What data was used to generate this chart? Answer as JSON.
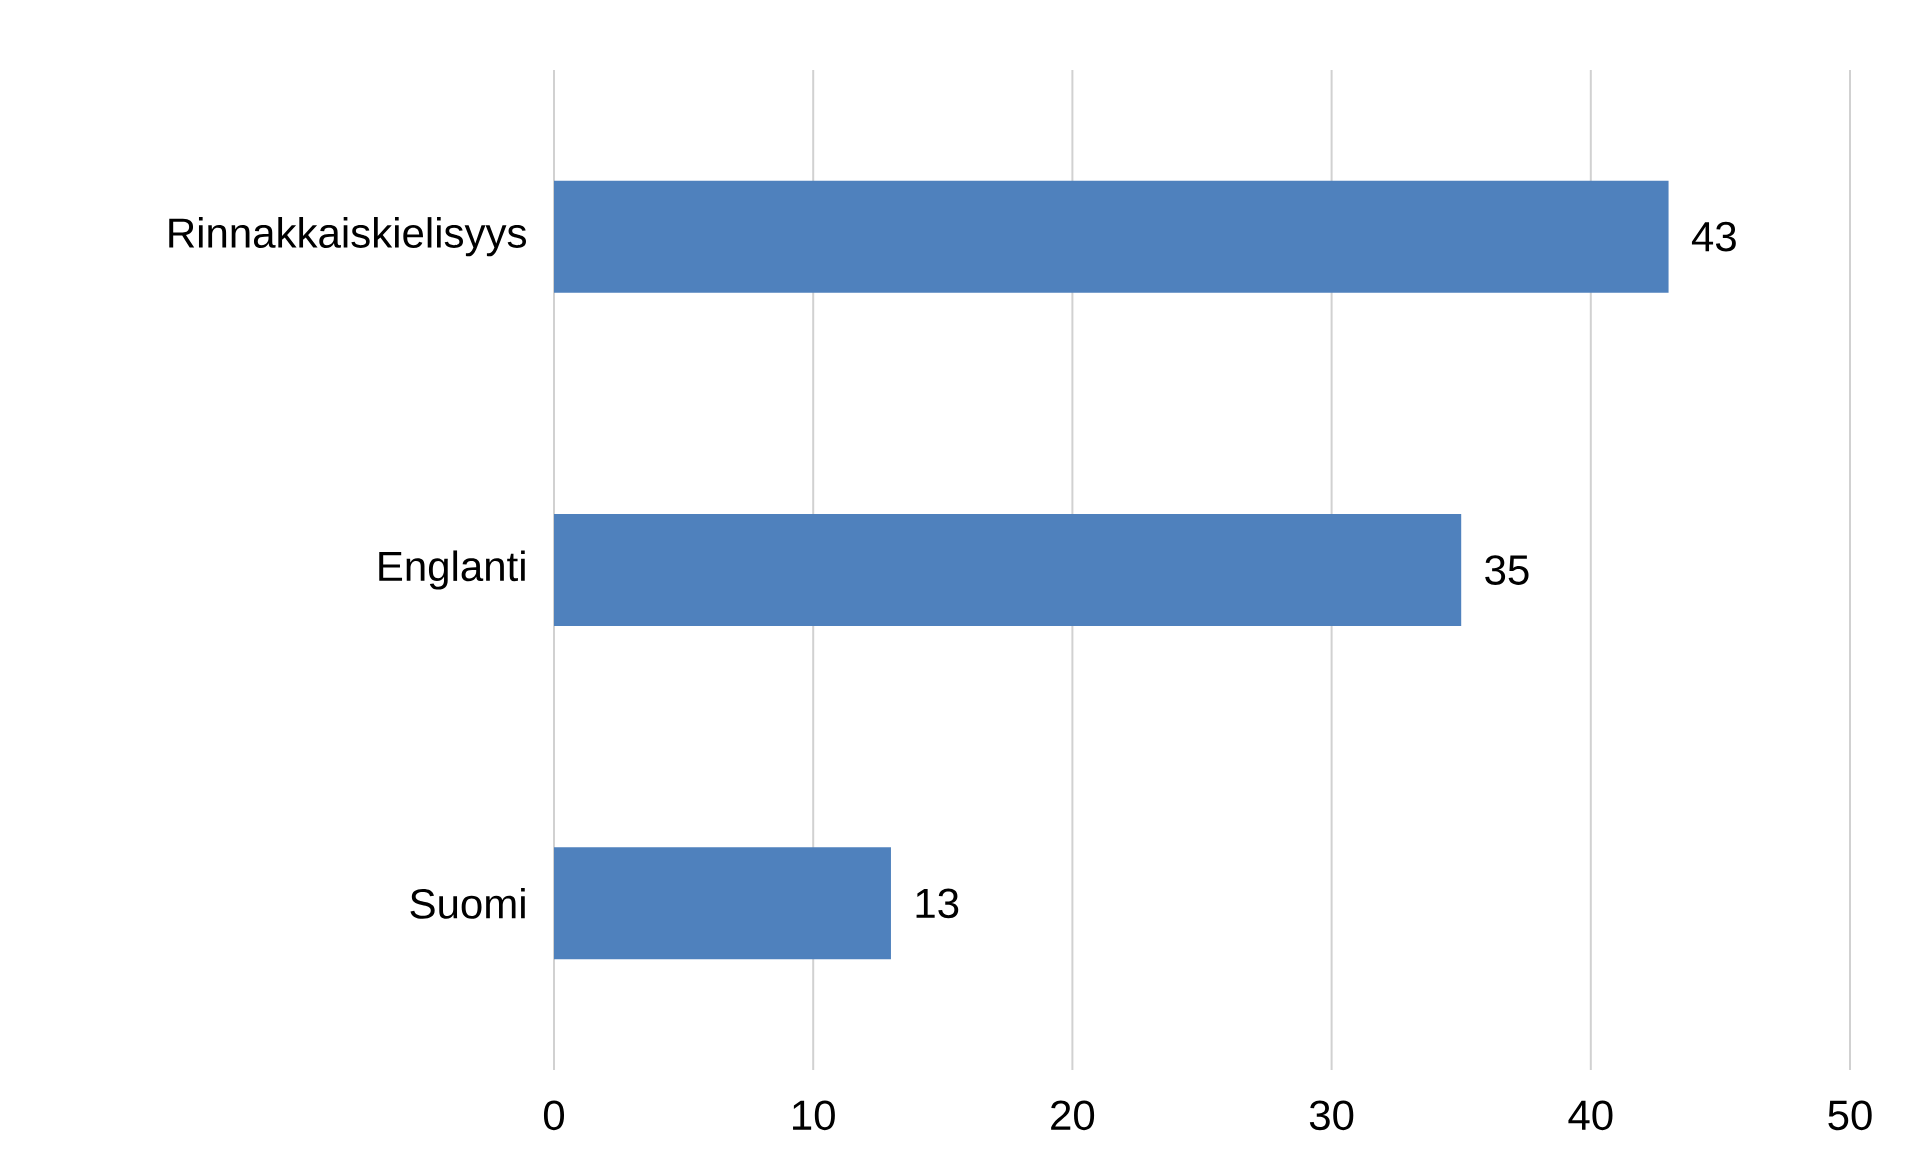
{
  "chart_data": {
    "type": "bar",
    "orientation": "horizontal",
    "categories": [
      "Rinnakkaiskielisyys",
      "Englanti",
      "Suomi"
    ],
    "values": [
      43,
      35,
      13
    ],
    "color": "#4f81bd",
    "xlim": [
      0,
      50
    ],
    "xticks": [
      0,
      10,
      20,
      30,
      40,
      50
    ],
    "grid": "x",
    "data_labels": true
  }
}
